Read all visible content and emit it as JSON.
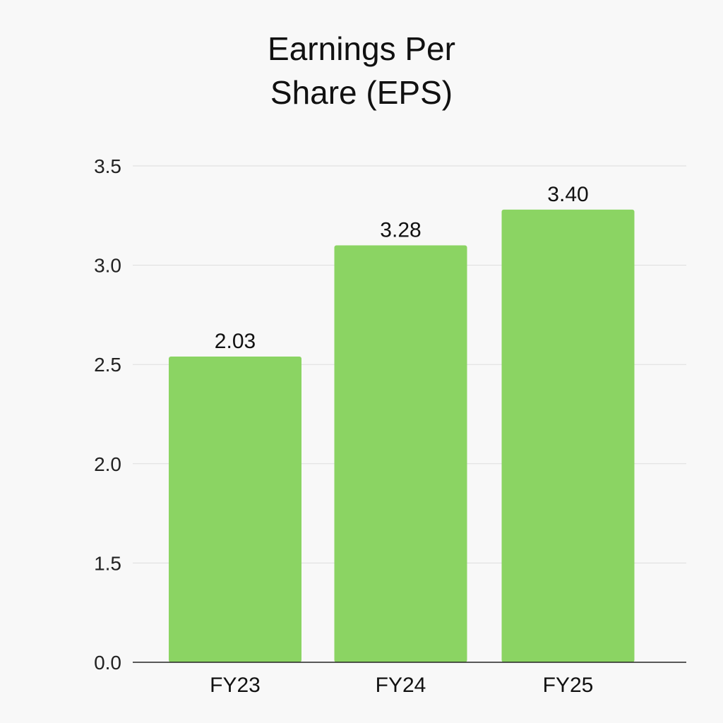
{
  "chart_data": {
    "type": "bar",
    "title_lines": [
      "Earnings Per",
      "Share (EPS)"
    ],
    "categories": [
      "FY23",
      "FY24",
      "FY25"
    ],
    "values": [
      2.03,
      3.28,
      3.4
    ],
    "data_labels": [
      "2.03",
      "3.28",
      "3.40"
    ],
    "bar_heights_read_from_axis": [
      2.54,
      3.1,
      3.28
    ],
    "y_ticks": [
      "0.0",
      "1.5",
      "2.0",
      "2.5",
      "3.0",
      "3.5"
    ],
    "xlabel": "",
    "ylabel": "",
    "grid": true,
    "legend": "none",
    "colors": {
      "bar": "#8bd463",
      "grid": "#dddddd",
      "axis": "#222222",
      "background": "#f8f8f8"
    }
  }
}
